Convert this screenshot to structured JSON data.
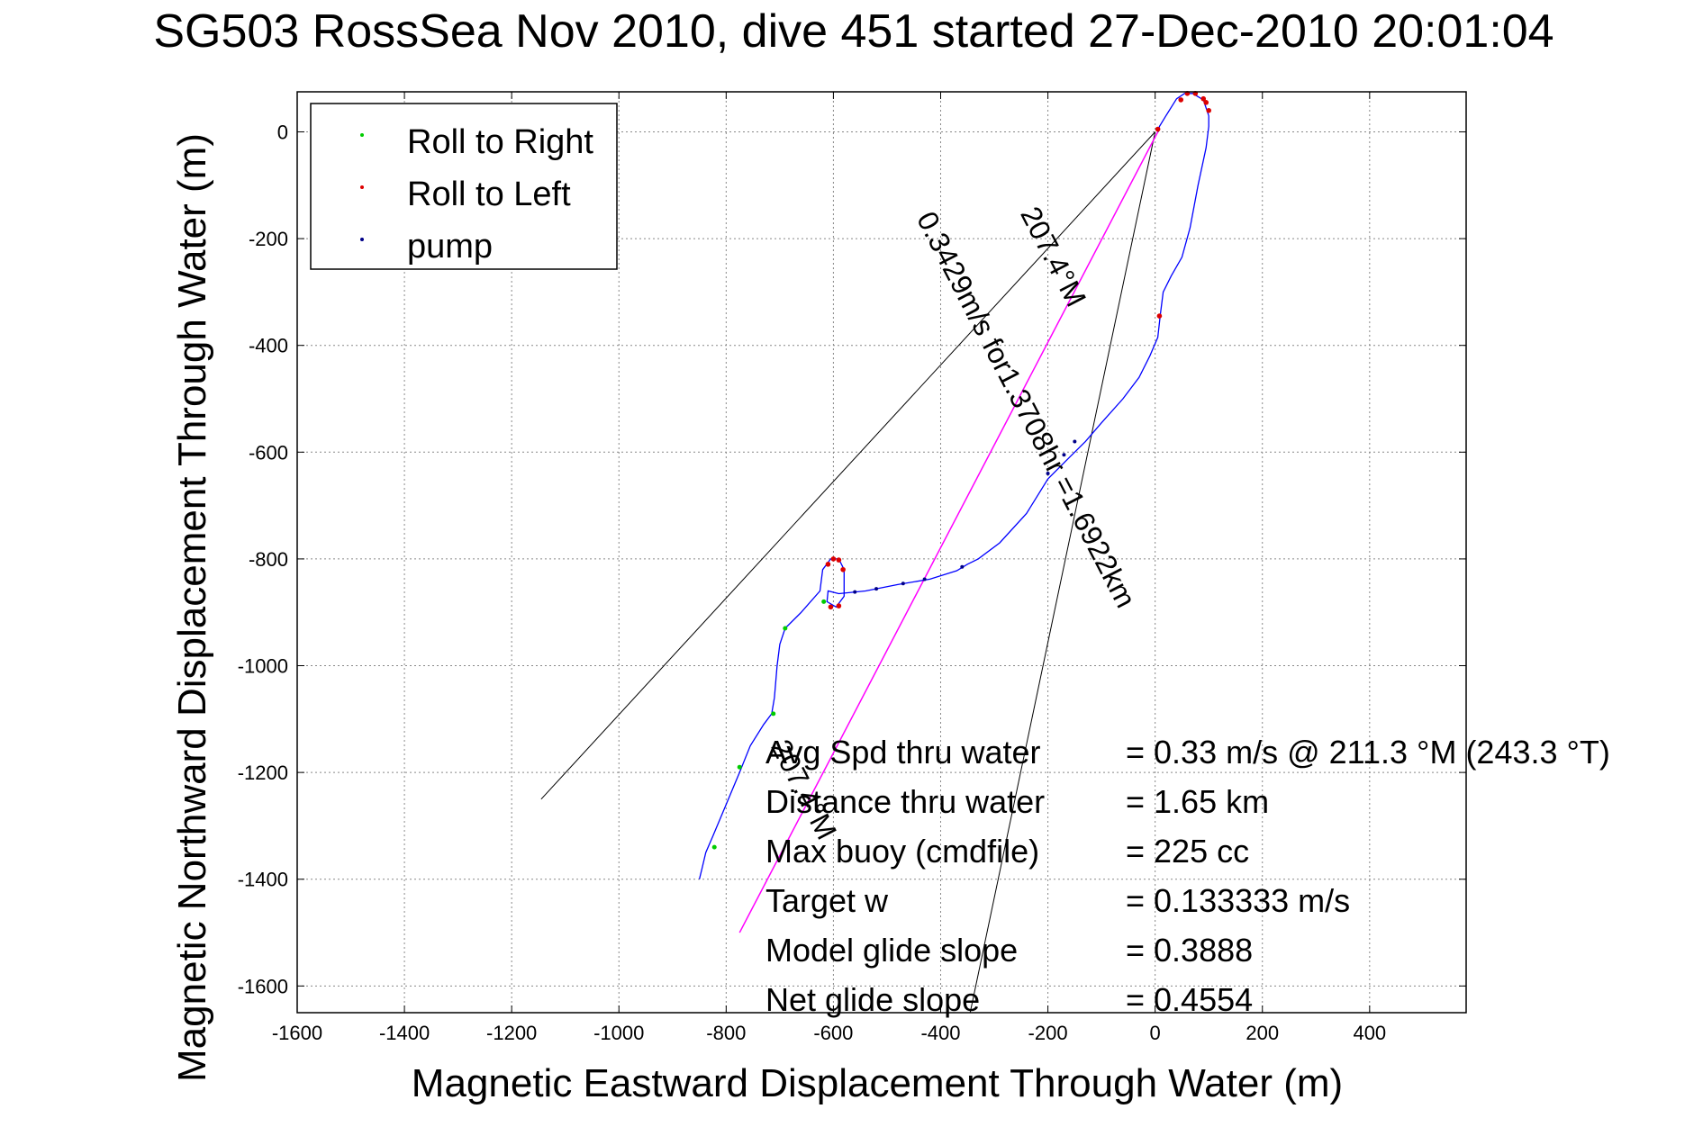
{
  "chart_data": {
    "type": "scatter",
    "title": "SG503 RossSea Nov 2010, dive 451 started 27-Dec-2010 20:01:04",
    "xlabel": "Magnetic Eastward Displacement Through Water (m)",
    "ylabel": "Magnetic Northward Displacement Through Water (m)",
    "xlim": [
      -1600,
      580
    ],
    "ylim": [
      -1650,
      75
    ],
    "xticks": [
      -1600,
      -1400,
      -1200,
      -1000,
      -800,
      -600,
      -400,
      -200,
      0,
      200,
      400
    ],
    "yticks": [
      0,
      -200,
      -400,
      -600,
      -800,
      -1000,
      -1200,
      -1400,
      -1600
    ],
    "grid": true,
    "legend_position": "top-left",
    "legend": [
      {
        "label": "Roll to Right",
        "color": "#00cc00"
      },
      {
        "label": "Roll to Left",
        "color": "#dd0000"
      },
      {
        "label": "pump",
        "color": "#000088"
      }
    ],
    "track": {
      "color": "#0000ff",
      "points": [
        [
          -850,
          -1400
        ],
        [
          -845,
          -1380
        ],
        [
          -838,
          -1350
        ],
        [
          -825,
          -1320
        ],
        [
          -800,
          -1260
        ],
        [
          -775,
          -1200
        ],
        [
          -755,
          -1150
        ],
        [
          -730,
          -1110
        ],
        [
          -715,
          -1090
        ],
        [
          -710,
          -1060
        ],
        [
          -705,
          -1000
        ],
        [
          -700,
          -960
        ],
        [
          -690,
          -930
        ],
        [
          -660,
          -900
        ],
        [
          -625,
          -860
        ],
        [
          -620,
          -820
        ],
        [
          -605,
          -800
        ],
        [
          -590,
          -800
        ],
        [
          -580,
          -820
        ],
        [
          -580,
          -870
        ],
        [
          -595,
          -890
        ],
        [
          -612,
          -880
        ],
        [
          -610,
          -860
        ],
        [
          -590,
          -865
        ],
        [
          -540,
          -860
        ],
        [
          -480,
          -848
        ],
        [
          -420,
          -838
        ],
        [
          -370,
          -822
        ],
        [
          -350,
          -810
        ],
        [
          -330,
          -800
        ],
        [
          -290,
          -770
        ],
        [
          -240,
          -715
        ],
        [
          -200,
          -650
        ],
        [
          -160,
          -610
        ],
        [
          -130,
          -580
        ],
        [
          -100,
          -545
        ],
        [
          -60,
          -500
        ],
        [
          -30,
          -460
        ],
        [
          -10,
          -420
        ],
        [
          5,
          -385
        ],
        [
          10,
          -340
        ],
        [
          15,
          -300
        ],
        [
          30,
          -270
        ],
        [
          50,
          -235
        ],
        [
          65,
          -180
        ],
        [
          80,
          -100
        ],
        [
          95,
          -30
        ],
        [
          100,
          10
        ],
        [
          100,
          30
        ],
        [
          90,
          60
        ],
        [
          70,
          72
        ],
        [
          55,
          72
        ],
        [
          40,
          62
        ],
        [
          20,
          30
        ],
        [
          8,
          10
        ],
        [
          5,
          0
        ]
      ]
    },
    "roll_right_points": [
      [
        -822,
        -1340
      ],
      [
        -775,
        -1190
      ],
      [
        -712,
        -1090
      ],
      [
        -690,
        -930
      ],
      [
        -618,
        -880
      ]
    ],
    "roll_left_points": [
      [
        -610,
        -810
      ],
      [
        -600,
        -800
      ],
      [
        -590,
        -802
      ],
      [
        -582,
        -820
      ],
      [
        -590,
        -888
      ],
      [
        -605,
        -890
      ],
      [
        60,
        72
      ],
      [
        75,
        72
      ],
      [
        90,
        62
      ],
      [
        100,
        40
      ],
      [
        8,
        -345
      ],
      [
        5,
        5
      ],
      [
        48,
        60
      ],
      [
        95,
        55
      ]
    ],
    "pump_points": [
      [
        -560,
        -862
      ],
      [
        -520,
        -856
      ],
      [
        -470,
        -846
      ],
      [
        -430,
        -838
      ],
      [
        -360,
        -815
      ],
      [
        -200,
        -640
      ],
      [
        -170,
        -605
      ],
      [
        -150,
        -580
      ]
    ],
    "avg_track_line": {
      "color": "#ff00ff",
      "from": [
        5,
        0
      ],
      "to": [
        -775,
        -1500
      ]
    },
    "reference_lines": [
      {
        "color": "#000000",
        "from": [
          0,
          0
        ],
        "to": [
          -1145,
          -1250
        ]
      },
      {
        "color": "#000000",
        "from": [
          0,
          0
        ],
        "to": [
          -345,
          -1650
        ]
      }
    ],
    "track_labels": [
      {
        "text": "0.3429m/s for1.3708hr =1.6922km",
        "angle_deg": 207.4
      },
      {
        "text": "207.4°M",
        "angle_deg": 207.4
      },
      {
        "text": "207.4°M",
        "angle_deg": 207.4
      }
    ],
    "annotations": [
      {
        "name": "Avg Spd thru water",
        "value": "=  0.33 m/s @ 211.3 °M (243.3 °T)"
      },
      {
        "name": "Distance thru water",
        "value": "=  1.65 km"
      },
      {
        "name": "Max buoy (cmdfile)",
        "value": "= 225 cc"
      },
      {
        "name": "Target w",
        "value": "= 0.133333 m/s"
      },
      {
        "name": "Model glide slope",
        "value": "= 0.3888"
      },
      {
        "name": "Net glide slope",
        "value": "= 0.4554"
      }
    ]
  }
}
